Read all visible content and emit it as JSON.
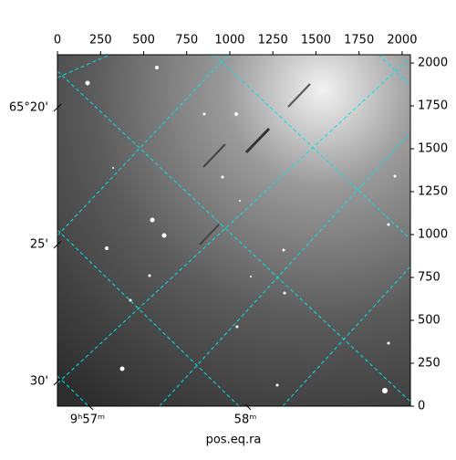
{
  "chart_data": {
    "type": "image",
    "xlabel": "pos.eq.ra",
    "xlim": [
      0,
      2048
    ],
    "xticks": [
      0,
      250,
      500,
      750,
      1000,
      1250,
      1500,
      1750,
      2000
    ],
    "ylim": [
      0,
      2048
    ],
    "yticks": [
      0,
      250,
      500,
      750,
      1000,
      1250,
      1500,
      1750,
      2000
    ],
    "left_ticks": [
      "65°20'",
      "25'",
      "30'"
    ],
    "bottom_ticks": [
      "9ʰ57ᵐ",
      "58ᵐ"
    ],
    "grid": true
  }
}
